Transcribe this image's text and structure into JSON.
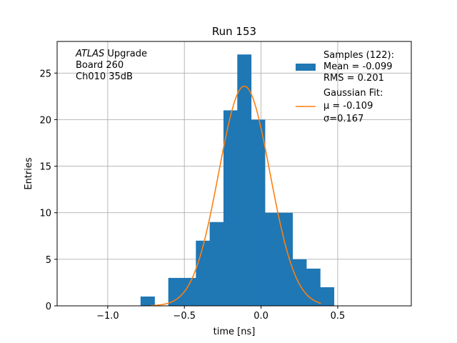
{
  "chart_data": {
    "type": "bar",
    "title": "Run 153",
    "xlabel": "time [ns]",
    "ylabel": "Entries",
    "xlim": [
      -1.33,
      0.98
    ],
    "ylim": [
      0,
      28.4
    ],
    "xticks": [
      -1.0,
      -0.5,
      0.0,
      0.5
    ],
    "xtick_labels": [
      "−1.0",
      "−0.5",
      "0.0",
      "0.5"
    ],
    "yticks": [
      0,
      5,
      10,
      15,
      20,
      25
    ],
    "ytick_labels": [
      "0",
      "5",
      "10",
      "15",
      "20",
      "25"
    ],
    "grid": true,
    "bin_edges": [
      -0.786,
      -0.695,
      -0.605,
      -0.515,
      -0.425,
      -0.335,
      -0.245,
      -0.155,
      -0.065,
      0.025,
      0.115,
      0.205,
      0.295,
      0.385,
      0.475
    ],
    "counts": [
      1,
      0,
      3,
      3,
      7,
      9,
      21,
      27,
      20,
      10,
      10,
      5,
      4,
      2
    ],
    "bar_color": "#1f77b4",
    "fit": {
      "type": "gaussian",
      "color": "#ff7f0e",
      "mu": -0.109,
      "sigma": 0.167,
      "peak": 23.6,
      "x_range": [
        -0.72,
        0.39
      ]
    },
    "annotation": {
      "lines": [
        {
          "italic": "ATLAS",
          "text": " Upgrade"
        },
        {
          "italic": "",
          "text": " Board 260"
        },
        {
          "italic": "",
          "text": " Ch010 35dB"
        }
      ]
    },
    "legend": {
      "position": "upper right",
      "entries": [
        {
          "kind": "patch",
          "lines": [
            "Samples (122):",
            " Mean = -0.099",
            " RMS = 0.201"
          ]
        },
        {
          "kind": "line",
          "lines": [
            "Gaussian Fit:",
            " μ = -0.109",
            " σ=0.167"
          ]
        }
      ]
    }
  }
}
